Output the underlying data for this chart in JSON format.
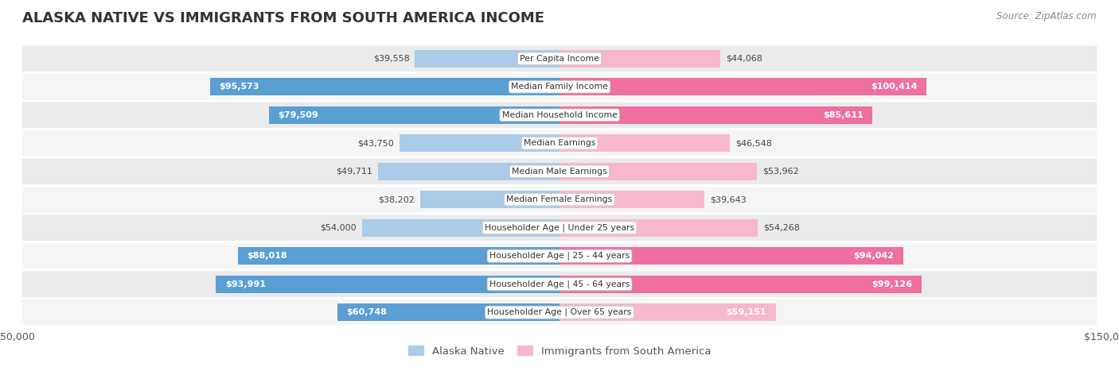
{
  "title": "ALASKA NATIVE VS IMMIGRANTS FROM SOUTH AMERICA INCOME",
  "source": "Source: ZipAtlas.com",
  "categories": [
    "Per Capita Income",
    "Median Family Income",
    "Median Household Income",
    "Median Earnings",
    "Median Male Earnings",
    "Median Female Earnings",
    "Householder Age | Under 25 years",
    "Householder Age | 25 - 44 years",
    "Householder Age | 45 - 64 years",
    "Householder Age | Over 65 years"
  ],
  "alaska_native": [
    39558,
    95573,
    79509,
    43750,
    49711,
    38202,
    54000,
    88018,
    93991,
    60748
  ],
  "immigrants": [
    44068,
    100414,
    85611,
    46548,
    53962,
    39643,
    54268,
    94042,
    99126,
    59151
  ],
  "alaska_color_light": "#aacce8",
  "alaska_color_dark": "#5a9fd4",
  "immigrant_color_light": "#f7b8cf",
  "immigrant_color_dark": "#ee6fa0",
  "alaska_label": "Alaska Native",
  "immigrant_label": "Immigrants from South America",
  "max_value": 150000,
  "row_bg_color": "#ebebeb",
  "row_alt_bg_color": "#f5f5f5",
  "title_color": "#333333",
  "inside_label_threshold": 60000
}
